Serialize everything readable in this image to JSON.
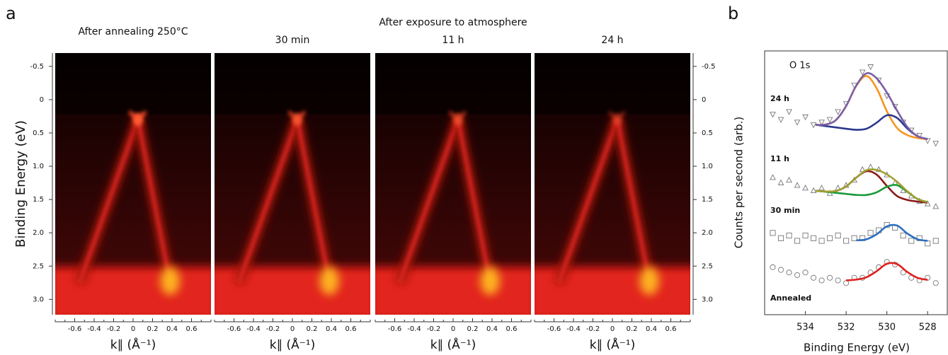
{
  "chart_data": [
    {
      "type": "arpes",
      "panel_label": "a",
      "group_title": "After exposure to atmosphere",
      "ylabel": "Binding Energy (eV)",
      "xlabel": "k∥ (Å⁻¹)",
      "panels": [
        {
          "title": "After annealing 250°C"
        },
        {
          "title": "30 min"
        },
        {
          "title": "11 h"
        },
        {
          "title": "24 h"
        }
      ],
      "xlim": [
        -0.8,
        0.8
      ],
      "xticks": [
        -0.6,
        -0.4,
        -0.2,
        0,
        0.2,
        0.4,
        0.6
      ],
      "ylim": [
        -0.7,
        3.23
      ],
      "yticks": [
        -0.5,
        0,
        0.5,
        {
          "value": 1,
          "label": "1.0"
        },
        1.5,
        {
          "value": 2,
          "label": "2.0"
        },
        2.5,
        {
          "value": 3,
          "label": "3.0"
        }
      ]
    },
    {
      "type": "line",
      "panel_label": "b",
      "title": "O 1s",
      "xlabel": "Binding Energy (eV)",
      "ylabel": "Counts per second (arb.)",
      "xlim": [
        536,
        527
      ],
      "xticks": [
        534,
        532,
        530,
        528
      ],
      "ylim": [
        0,
        10
      ],
      "marker_color": "#777777",
      "scatter_x": [
        535.6,
        535.2,
        534.8,
        534.4,
        534.0,
        533.6,
        533.2,
        532.8,
        532.4,
        532.0,
        531.6,
        531.2,
        530.8,
        530.4,
        530.0,
        529.6,
        529.2,
        528.8,
        528.4,
        528.0,
        527.6
      ],
      "series": [
        {
          "name": "24 h",
          "marker": "triangle-down",
          "values": [
            7.6,
            7.4,
            7.7,
            7.3,
            7.5,
            7.2,
            7.3,
            7.4,
            7.7,
            8.0,
            8.7,
            9.2,
            9.4,
            8.9,
            8.3,
            7.9,
            7.3,
            7.0,
            6.8,
            6.6,
            6.5
          ],
          "fits": [
            {
              "color": "#f7941d",
              "x": [
                533.5,
                533,
                532.5,
                532,
                531.5,
                531,
                530.5,
                530,
                529.5,
                529,
                528.5,
                528
              ],
              "values": [
                7.2,
                7.21,
                7.38,
                7.91,
                8.68,
                9.05,
                8.58,
                7.71,
                7.08,
                6.81,
                6.7,
                6.65
              ]
            },
            {
              "color": "#2b3990",
              "x": [
                533.5,
                533,
                532.5,
                532,
                531.5,
                531,
                530.5,
                530,
                529.5,
                529,
                528.5,
                528
              ],
              "values": [
                7.2,
                7.15,
                7.1,
                7.05,
                7.01,
                7.05,
                7.28,
                7.56,
                7.46,
                7.06,
                6.77,
                6.66
              ]
            },
            {
              "color": "#7b5ea7",
              "x": [
                533.5,
                533,
                532.5,
                532,
                531.5,
                531,
                530.5,
                530,
                529.5,
                529,
                528.5,
                528
              ],
              "values": [
                7.2,
                7.21,
                7.38,
                7.91,
                8.69,
                9.15,
                8.96,
                8.42,
                7.74,
                7.12,
                6.77,
                6.66
              ]
            }
          ]
        },
        {
          "name": "11 h",
          "marker": "triangle-up",
          "values": [
            5.2,
            5.0,
            5.1,
            4.9,
            4.8,
            4.7,
            4.8,
            4.6,
            4.8,
            4.9,
            5.1,
            5.5,
            5.6,
            5.5,
            5.3,
            5.0,
            4.7,
            4.5,
            4.3,
            4.2,
            4.1
          ],
          "fits": [
            {
              "color": "#8b1a1a",
              "x": [
                533.5,
                533,
                532.5,
                532,
                531.5,
                531,
                530.5,
                530,
                529.5,
                529,
                528.5,
                528
              ],
              "values": [
                4.7,
                4.67,
                4.69,
                4.86,
                5.2,
                5.44,
                5.31,
                4.88,
                4.5,
                4.35,
                4.29,
                4.25
              ]
            },
            {
              "color": "#1a9a3a",
              "x": [
                533.5,
                533,
                532.5,
                532,
                531.5,
                531,
                530.5,
                530,
                529.5,
                529,
                528.5,
                528
              ],
              "values": [
                4.7,
                4.66,
                4.62,
                4.58,
                4.54,
                4.54,
                4.64,
                4.85,
                4.91,
                4.66,
                4.39,
                4.27
              ]
            },
            {
              "color": "#a0a030",
              "x": [
                533.5,
                533,
                532.5,
                532,
                531.5,
                531,
                530.5,
                530,
                529.5,
                529,
                528.5,
                528
              ],
              "values": [
                4.7,
                4.67,
                4.69,
                4.86,
                5.2,
                5.48,
                5.49,
                5.32,
                5.04,
                4.68,
                4.39,
                4.27
              ]
            }
          ]
        },
        {
          "name": "30 min",
          "marker": "square",
          "values": [
            3.1,
            2.9,
            3.0,
            2.8,
            3.0,
            2.9,
            2.8,
            2.9,
            3.0,
            2.8,
            2.9,
            2.9,
            3.1,
            3.2,
            3.4,
            3.3,
            3.0,
            2.8,
            2.9,
            2.7,
            2.8
          ],
          "fits": [
            {
              "color": "#2e6fc0",
              "x": [
                531.5,
                531,
                530.5,
                530,
                529.5,
                529,
                528.5,
                528
              ],
              "values": [
                2.82,
                2.86,
                3.05,
                3.35,
                3.38,
                3.08,
                2.86,
                2.8
              ]
            }
          ]
        },
        {
          "name": "Annealed",
          "marker": "circle",
          "values": [
            1.8,
            1.7,
            1.6,
            1.5,
            1.6,
            1.4,
            1.3,
            1.4,
            1.3,
            1.2,
            1.4,
            1.4,
            1.6,
            1.8,
            2.0,
            1.9,
            1.6,
            1.4,
            1.3,
            1.4,
            1.2
          ],
          "fits": [
            {
              "color": "#e02020",
              "x": [
                532,
                531.5,
                531,
                530.5,
                530,
                529.5,
                529,
                528.5,
                528
              ],
              "values": [
                1.3,
                1.33,
                1.42,
                1.65,
                1.93,
                1.92,
                1.62,
                1.4,
                1.32
              ]
            }
          ]
        }
      ]
    }
  ]
}
